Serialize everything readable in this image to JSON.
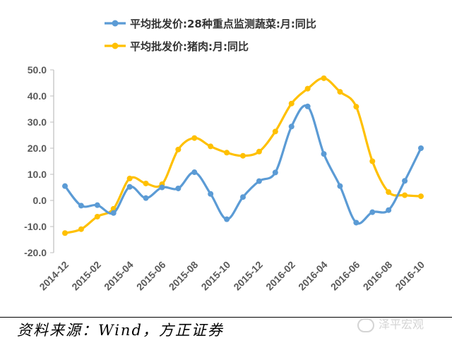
{
  "chart_data": {
    "type": "line",
    "categories": [
      "2014-12",
      "2015-01",
      "2015-02",
      "2015-03",
      "2015-04",
      "2015-05",
      "2015-06",
      "2015-07",
      "2015-08",
      "2015-09",
      "2015-10",
      "2015-11",
      "2015-12",
      "2016-01",
      "2016-02",
      "2016-03",
      "2016-04",
      "2016-05",
      "2016-06",
      "2016-07",
      "2016-08",
      "2016-09",
      "2016-10"
    ],
    "tick_labels": [
      "2014-12",
      "2015-02",
      "2015-04",
      "2015-06",
      "2015-08",
      "2015-10",
      "2015-12",
      "2016-02",
      "2016-04",
      "2016-06",
      "2016-08",
      "2016-10"
    ],
    "ylim": [
      -20,
      50
    ],
    "yticks": [
      "50.0",
      "40.0",
      "30.0",
      "20.0",
      "10.0",
      "0.0",
      "-10.0",
      "-20.0"
    ],
    "grid": false,
    "legend_position": "top",
    "series": [
      {
        "name": "平均批发价:28种重点监测蔬菜:月:同比",
        "color": "#5b9bd5",
        "values": [
          5.5,
          -2,
          -1.8,
          -4.8,
          5.2,
          0.9,
          5,
          4.6,
          10.8,
          2.5,
          -7.2,
          1.3,
          7.4,
          10.7,
          28.3,
          36,
          17.8,
          5.5,
          -8.5,
          -4.5,
          -3.7,
          7.5,
          20
        ]
      },
      {
        "name": "平均批发价:猪肉:月:同比",
        "color": "#ffc000",
        "values": [
          -12.5,
          -11,
          -6.2,
          -3.2,
          8.4,
          6.5,
          6.2,
          19.5,
          23.9,
          20.7,
          18.3,
          17.1,
          18.7,
          26.4,
          37.1,
          42.8,
          46.8,
          41.6,
          35.9,
          15,
          3.2,
          2,
          1.6
        ]
      }
    ]
  },
  "source_text": "资料来源：Wind，方正证券",
  "watermark_text": "泽平宏观"
}
